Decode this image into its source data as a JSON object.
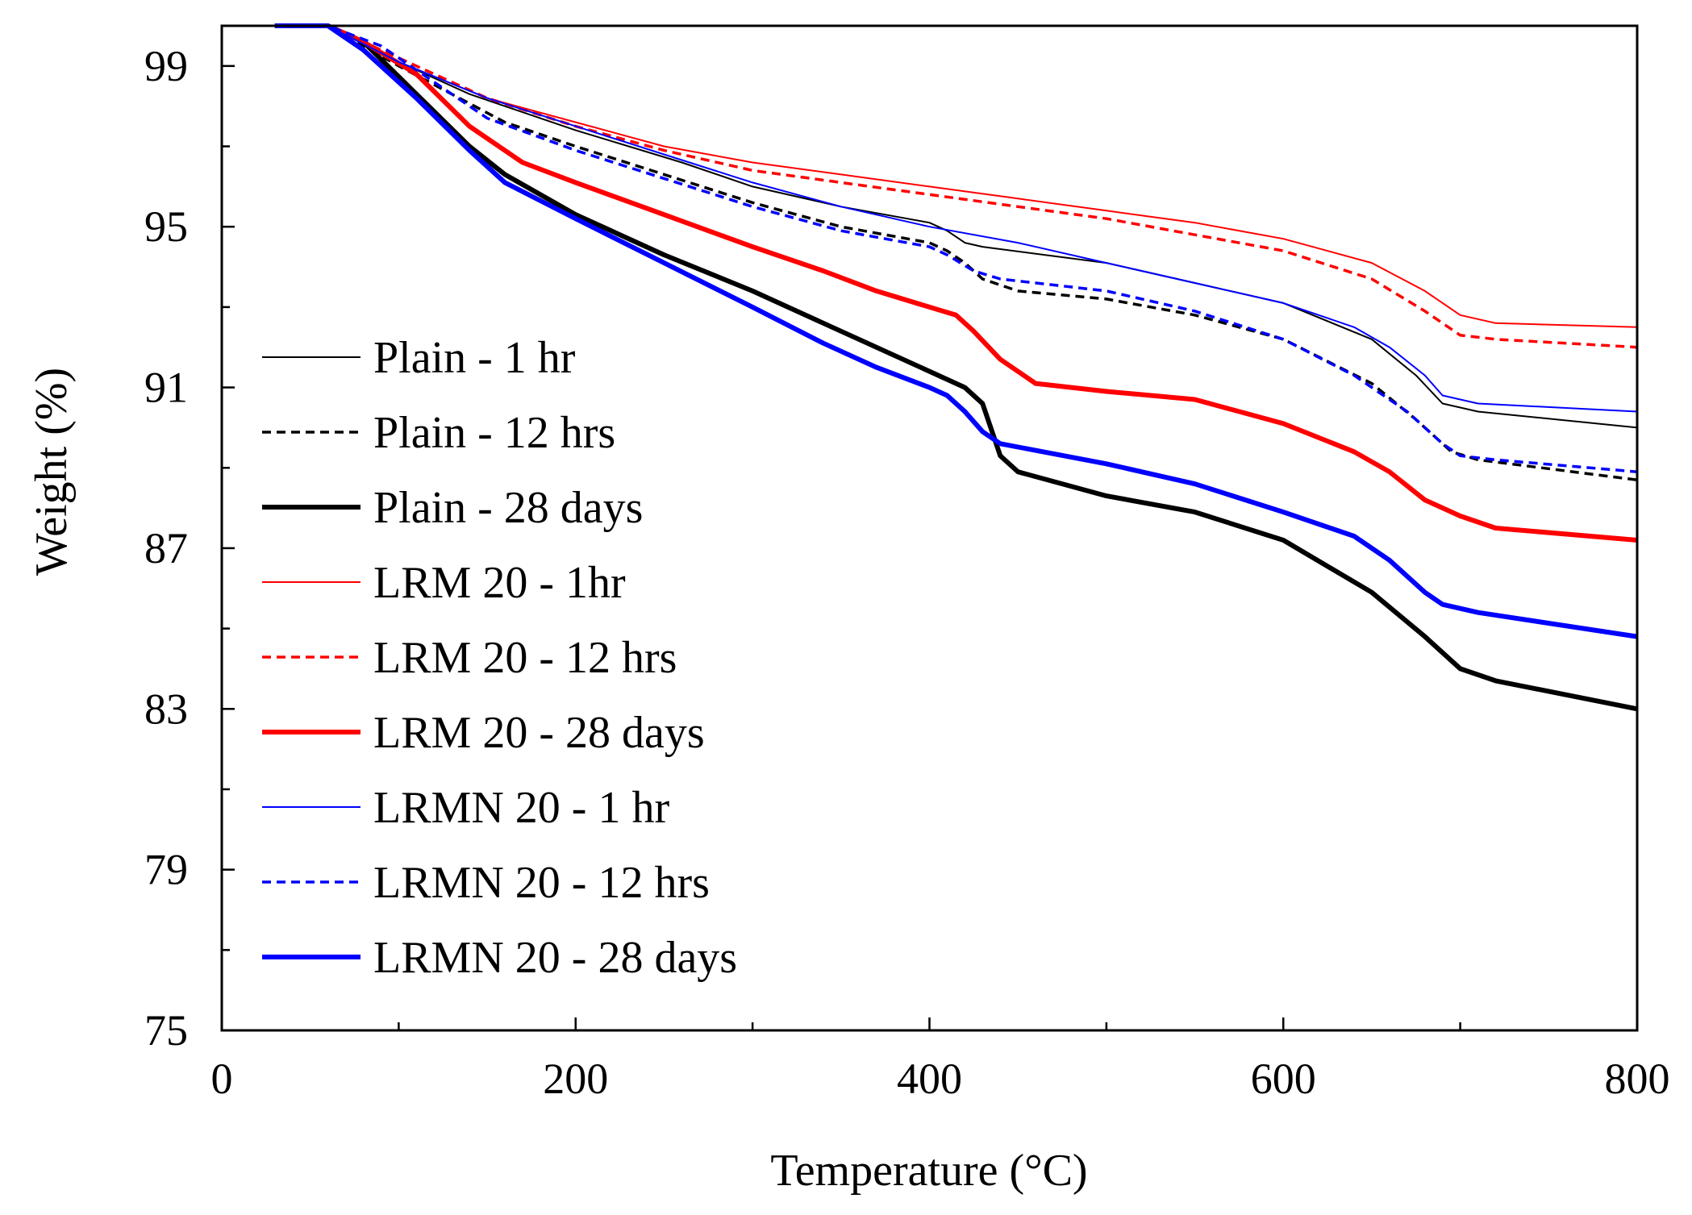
{
  "chart_data": {
    "type": "line",
    "xlabel": "Temperature (°C)",
    "ylabel": "Weight (%)",
    "xlim": [
      0,
      800
    ],
    "ylim": [
      75,
      100
    ],
    "xticks": [
      0,
      200,
      400,
      600,
      800
    ],
    "yticks": [
      75,
      79,
      83,
      87,
      91,
      95,
      99
    ],
    "x_minor_step": 100,
    "y_minor_step": 2,
    "legend_position": "left",
    "series": [
      {
        "name": "Plain - 1 hr",
        "color": "#000000",
        "style": "solid",
        "weight": "thin",
        "points": [
          [
            30,
            100
          ],
          [
            60,
            100
          ],
          [
            100,
            99.1
          ],
          [
            140,
            98.3
          ],
          [
            200,
            97.4
          ],
          [
            260,
            96.6
          ],
          [
            300,
            96.0
          ],
          [
            350,
            95.5
          ],
          [
            400,
            95.1
          ],
          [
            410,
            94.9
          ],
          [
            420,
            94.6
          ],
          [
            430,
            94.5
          ],
          [
            500,
            94.1
          ],
          [
            550,
            93.6
          ],
          [
            600,
            93.1
          ],
          [
            650,
            92.2
          ],
          [
            675,
            91.3
          ],
          [
            690,
            90.6
          ],
          [
            710,
            90.4
          ],
          [
            800,
            90.0
          ]
        ]
      },
      {
        "name": "Plain - 12 hrs",
        "color": "#000000",
        "style": "dashed",
        "weight": "thin",
        "points": [
          [
            30,
            100
          ],
          [
            60,
            100
          ],
          [
            100,
            99.0
          ],
          [
            130,
            98.3
          ],
          [
            160,
            97.6
          ],
          [
            200,
            97.0
          ],
          [
            250,
            96.3
          ],
          [
            300,
            95.6
          ],
          [
            350,
            95.0
          ],
          [
            400,
            94.6
          ],
          [
            410,
            94.4
          ],
          [
            420,
            94.1
          ],
          [
            430,
            93.7
          ],
          [
            450,
            93.4
          ],
          [
            500,
            93.2
          ],
          [
            550,
            92.8
          ],
          [
            600,
            92.2
          ],
          [
            650,
            91.1
          ],
          [
            675,
            90.2
          ],
          [
            695,
            89.4
          ],
          [
            710,
            89.2
          ],
          [
            800,
            88.7
          ]
        ]
      },
      {
        "name": "Plain - 28 days",
        "color": "#000000",
        "style": "solid",
        "weight": "thick",
        "points": [
          [
            30,
            100
          ],
          [
            60,
            100
          ],
          [
            80,
            99.6
          ],
          [
            110,
            98.3
          ],
          [
            140,
            97.0
          ],
          [
            160,
            96.3
          ],
          [
            200,
            95.3
          ],
          [
            250,
            94.3
          ],
          [
            300,
            93.4
          ],
          [
            350,
            92.4
          ],
          [
            400,
            91.4
          ],
          [
            420,
            91.0
          ],
          [
            430,
            90.6
          ],
          [
            440,
            89.3
          ],
          [
            450,
            88.9
          ],
          [
            500,
            88.3
          ],
          [
            550,
            87.9
          ],
          [
            600,
            87.2
          ],
          [
            650,
            85.9
          ],
          [
            680,
            84.8
          ],
          [
            700,
            84.0
          ],
          [
            720,
            83.7
          ],
          [
            800,
            83.0
          ]
        ]
      },
      {
        "name": "LRM 20 - 1hr",
        "color": "#ff0000",
        "style": "solid",
        "weight": "thin",
        "points": [
          [
            30,
            100
          ],
          [
            60,
            100
          ],
          [
            100,
            99.1
          ],
          [
            150,
            98.2
          ],
          [
            200,
            97.6
          ],
          [
            250,
            97.0
          ],
          [
            300,
            96.6
          ],
          [
            350,
            96.3
          ],
          [
            400,
            96.0
          ],
          [
            450,
            95.7
          ],
          [
            500,
            95.4
          ],
          [
            550,
            95.1
          ],
          [
            600,
            94.7
          ],
          [
            650,
            94.1
          ],
          [
            680,
            93.4
          ],
          [
            700,
            92.8
          ],
          [
            720,
            92.6
          ],
          [
            800,
            92.5
          ]
        ]
      },
      {
        "name": "LRM 20 - 12 hrs",
        "color": "#ff0000",
        "style": "dashed",
        "weight": "thin",
        "points": [
          [
            30,
            100
          ],
          [
            60,
            100
          ],
          [
            100,
            99.2
          ],
          [
            150,
            98.2
          ],
          [
            200,
            97.5
          ],
          [
            250,
            96.9
          ],
          [
            300,
            96.4
          ],
          [
            350,
            96.1
          ],
          [
            400,
            95.8
          ],
          [
            450,
            95.5
          ],
          [
            500,
            95.2
          ],
          [
            550,
            94.8
          ],
          [
            600,
            94.4
          ],
          [
            650,
            93.7
          ],
          [
            680,
            92.9
          ],
          [
            700,
            92.3
          ],
          [
            720,
            92.2
          ],
          [
            800,
            92.0
          ]
        ]
      },
      {
        "name": "LRM 20 - 28 days",
        "color": "#ff0000",
        "style": "solid",
        "weight": "thick",
        "points": [
          [
            30,
            100
          ],
          [
            60,
            100
          ],
          [
            80,
            99.6
          ],
          [
            110,
            98.8
          ],
          [
            140,
            97.5
          ],
          [
            170,
            96.6
          ],
          [
            200,
            96.1
          ],
          [
            250,
            95.3
          ],
          [
            300,
            94.5
          ],
          [
            340,
            93.9
          ],
          [
            370,
            93.4
          ],
          [
            400,
            93.0
          ],
          [
            415,
            92.8
          ],
          [
            425,
            92.4
          ],
          [
            440,
            91.7
          ],
          [
            460,
            91.1
          ],
          [
            500,
            90.9
          ],
          [
            550,
            90.7
          ],
          [
            600,
            90.1
          ],
          [
            640,
            89.4
          ],
          [
            660,
            88.9
          ],
          [
            680,
            88.2
          ],
          [
            700,
            87.8
          ],
          [
            720,
            87.5
          ],
          [
            800,
            87.2
          ]
        ]
      },
      {
        "name": "LRMN 20 - 1 hr",
        "color": "#0000ff",
        "style": "solid",
        "weight": "thin",
        "points": [
          [
            30,
            100
          ],
          [
            60,
            100
          ],
          [
            100,
            99.1
          ],
          [
            150,
            98.2
          ],
          [
            200,
            97.5
          ],
          [
            250,
            96.8
          ],
          [
            300,
            96.1
          ],
          [
            350,
            95.5
          ],
          [
            400,
            95.0
          ],
          [
            450,
            94.6
          ],
          [
            500,
            94.1
          ],
          [
            550,
            93.6
          ],
          [
            600,
            93.1
          ],
          [
            640,
            92.5
          ],
          [
            660,
            92.0
          ],
          [
            680,
            91.3
          ],
          [
            690,
            90.8
          ],
          [
            710,
            90.6
          ],
          [
            800,
            90.4
          ]
        ]
      },
      {
        "name": "LRMN 20 - 12 hrs",
        "color": "#0000ff",
        "style": "dashed",
        "weight": "thin",
        "points": [
          [
            30,
            100
          ],
          [
            60,
            100
          ],
          [
            90,
            99.5
          ],
          [
            120,
            98.6
          ],
          [
            150,
            97.7
          ],
          [
            200,
            96.9
          ],
          [
            250,
            96.2
          ],
          [
            300,
            95.5
          ],
          [
            350,
            94.9
          ],
          [
            400,
            94.5
          ],
          [
            410,
            94.3
          ],
          [
            425,
            93.9
          ],
          [
            440,
            93.7
          ],
          [
            500,
            93.4
          ],
          [
            550,
            92.9
          ],
          [
            600,
            92.2
          ],
          [
            640,
            91.3
          ],
          [
            670,
            90.4
          ],
          [
            690,
            89.6
          ],
          [
            700,
            89.3
          ],
          [
            720,
            89.2
          ],
          [
            800,
            88.9
          ]
        ]
      },
      {
        "name": "LRMN 20 - 28 days",
        "color": "#0000ff",
        "style": "solid",
        "weight": "thick",
        "points": [
          [
            30,
            100
          ],
          [
            60,
            100
          ],
          [
            80,
            99.4
          ],
          [
            110,
            98.2
          ],
          [
            140,
            96.9
          ],
          [
            160,
            96.1
          ],
          [
            200,
            95.2
          ],
          [
            250,
            94.1
          ],
          [
            300,
            93.0
          ],
          [
            340,
            92.1
          ],
          [
            370,
            91.5
          ],
          [
            400,
            91.0
          ],
          [
            410,
            90.8
          ],
          [
            420,
            90.4
          ],
          [
            430,
            89.9
          ],
          [
            440,
            89.6
          ],
          [
            500,
            89.1
          ],
          [
            550,
            88.6
          ],
          [
            600,
            87.9
          ],
          [
            640,
            87.3
          ],
          [
            660,
            86.7
          ],
          [
            680,
            85.9
          ],
          [
            690,
            85.6
          ],
          [
            710,
            85.4
          ],
          [
            800,
            84.8
          ]
        ]
      }
    ]
  }
}
